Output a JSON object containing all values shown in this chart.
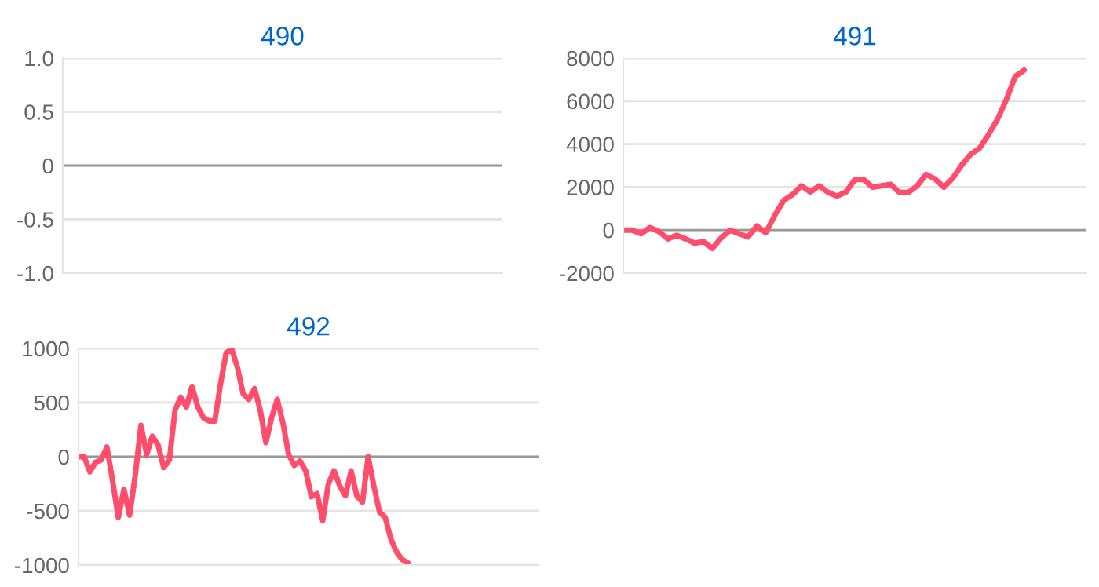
{
  "chart_data": [
    {
      "type": "line",
      "title": "490",
      "categories": [
        null,
        null,
        null,
        null,
        null,
        null,
        null,
        null,
        null,
        null
      ],
      "series": [
        {
          "color": "#ff4d6b",
          "values": [
            null,
            null,
            null,
            null,
            null,
            null,
            null,
            null,
            null,
            null
          ]
        }
      ],
      "ylim": [
        -1.0,
        1.0
      ],
      "yticks": [
        {
          "value": -1.0,
          "label": "-1.0"
        },
        {
          "value": -0.5,
          "label": "-0.5"
        },
        0,
        {
          "value": 0.5,
          "label": "0.5"
        },
        {
          "value": 1.0,
          "label": "1.0"
        }
      ],
      "grid": "y",
      "ref_lines": [
        {
          "axis": "y",
          "value": 0,
          "color": "#999999"
        }
      ],
      "tick_labels": "y",
      "marker": "none"
    },
    {
      "type": "line",
      "title": "491",
      "categories": [
        null,
        null,
        null,
        null,
        null,
        null,
        null,
        null,
        null,
        null,
        null,
        null,
        null,
        null,
        null,
        null,
        null,
        null,
        null,
        null,
        null,
        null,
        null,
        null,
        null,
        null,
        null,
        null,
        null,
        null,
        null,
        null,
        null,
        null,
        null,
        null,
        null,
        null,
        null,
        null,
        null,
        null,
        null,
        null,
        null,
        null,
        null,
        null,
        null,
        null,
        null,
        null,
        null
      ],
      "series": [
        {
          "color": "#ff4d6b",
          "values": [
            0,
            0,
            -170,
            120,
            -70,
            -410,
            -240,
            -410,
            -610,
            -530,
            -850,
            -360,
            0,
            -170,
            -320,
            190,
            -120,
            680,
            1380,
            1650,
            2060,
            1770,
            2060,
            1750,
            1580,
            1770,
            2350,
            2350,
            1990,
            2060,
            2130,
            1750,
            1750,
            2060,
            2590,
            2380,
            1990,
            2420,
            3030,
            3520,
            3810,
            4440,
            5140,
            6060,
            7150,
            7440,
            null,
            null,
            null,
            null,
            null,
            null,
            null
          ]
        }
      ],
      "ylim": [
        -2000,
        8000
      ],
      "yticks": [
        {
          "value": -2000,
          "label": "-2000"
        },
        0,
        2000,
        4000,
        6000,
        8000
      ],
      "grid": "y",
      "ref_lines": [
        {
          "axis": "y",
          "value": 0,
          "color": "#999999"
        }
      ],
      "tick_labels": "y",
      "marker": "none"
    },
    {
      "type": "line",
      "title": "492",
      "categories": [
        null,
        null,
        null,
        null,
        null,
        null,
        null,
        null,
        null,
        null,
        null,
        null,
        null,
        null,
        null,
        null,
        null,
        null,
        null,
        null,
        null,
        null,
        null,
        null,
        null,
        null,
        null,
        null,
        null,
        null,
        null,
        null,
        null,
        null,
        null,
        null,
        null,
        null,
        null,
        null,
        null,
        null,
        null,
        null,
        null,
        null,
        null,
        null,
        null,
        null,
        null,
        null,
        null,
        null,
        null,
        null,
        null,
        null,
        null,
        null,
        null,
        null,
        null,
        null,
        null,
        null,
        null,
        null,
        null,
        null,
        null,
        null,
        null,
        null,
        null,
        null,
        null,
        null,
        null,
        null,
        null,
        null
      ],
      "series": [
        {
          "color": "#ff4d6b",
          "values": [
            0,
            0,
            -140,
            -50,
            -30,
            90,
            -220,
            -560,
            -300,
            -540,
            -170,
            290,
            20,
            190,
            110,
            -100,
            -30,
            430,
            550,
            460,
            650,
            460,
            360,
            330,
            330,
            670,
            960,
            990,
            820,
            580,
            530,
            630,
            430,
            130,
            360,
            530,
            310,
            20,
            -80,
            -40,
            -130,
            -370,
            -340,
            -590,
            -250,
            -130,
            -270,
            -360,
            -130,
            -360,
            -420,
            0,
            -270,
            -510,
            -560,
            -760,
            -880,
            -950,
            -980,
            null,
            null,
            null,
            null,
            null,
            null,
            null,
            null,
            null,
            null,
            null,
            null,
            null,
            null,
            null,
            null,
            null,
            null,
            null,
            null,
            null,
            null,
            null
          ]
        }
      ],
      "ylim": [
        -1000,
        1000
      ],
      "yticks": [
        {
          "value": -1000,
          "label": "-1000"
        },
        {
          "value": -500,
          "label": "-500"
        },
        0,
        500,
        1000
      ],
      "grid": "y",
      "ref_lines": [
        {
          "axis": "y",
          "value": 0,
          "color": "#999999"
        }
      ],
      "tick_labels": "y",
      "marker": "none"
    }
  ]
}
